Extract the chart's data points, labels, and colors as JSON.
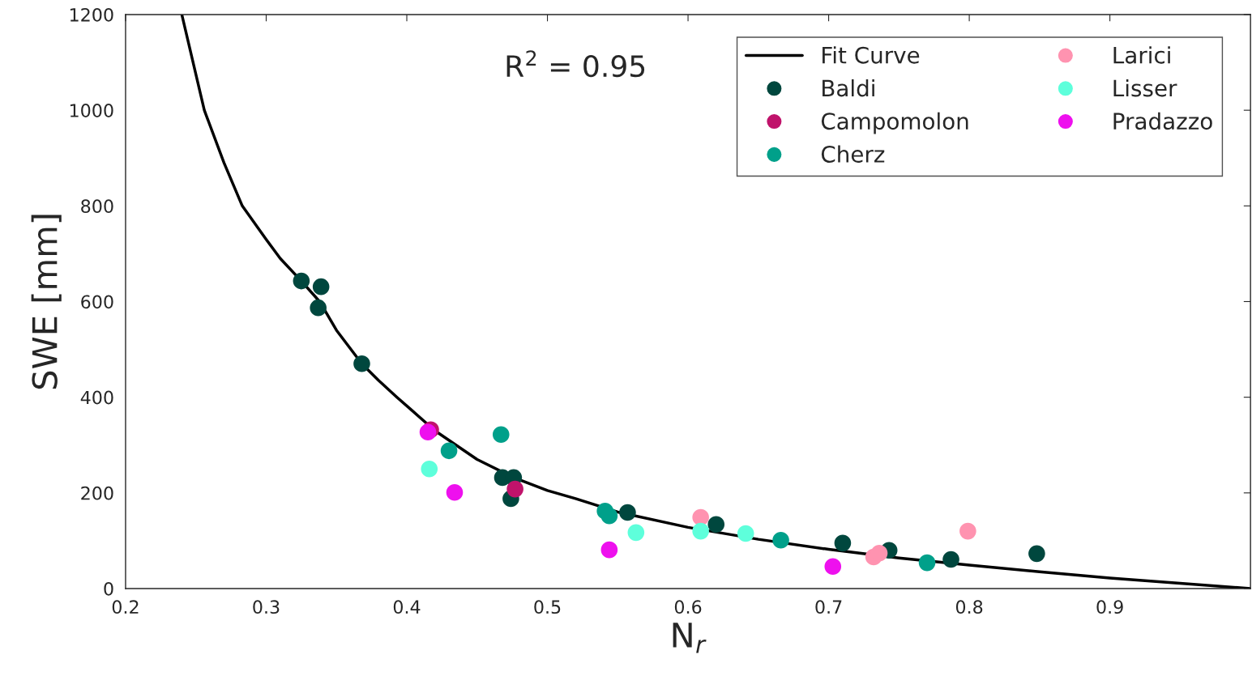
{
  "chart_data": {
    "type": "scatter",
    "xlabel": "N$_{r}$",
    "ylabel": "SWE [mm]",
    "annotations": [
      "R$^{2}$ = 0.95"
    ],
    "xlim": [
      0.2,
      1.0
    ],
    "xticks": [
      0.2,
      0.3,
      0.4,
      0.5,
      0.6,
      0.7,
      0.8,
      0.9
    ],
    "ylim": [
      0,
      1200
    ],
    "yticks": [
      0,
      200,
      400,
      600,
      800,
      1000,
      1200
    ],
    "grid": false,
    "legend": "top right",
    "marker": "circle",
    "series": [
      {
        "name": "Fit Curve",
        "type": "line",
        "marker": "none",
        "color": "#000000",
        "line_style": "solid",
        "x": [
          0.24,
          0.256,
          0.27,
          0.283,
          0.3,
          0.31,
          0.325,
          0.338,
          0.35,
          0.368,
          0.38,
          0.393,
          0.42,
          0.45,
          0.476,
          0.5,
          0.52,
          0.55,
          0.6,
          0.65,
          0.7,
          0.75,
          0.8,
          0.85,
          0.9,
          0.95,
          1.0
        ],
        "values": [
          1200,
          1000,
          890,
          800,
          730,
          690,
          643,
          600,
          540,
          470,
          435,
          400,
          330,
          270,
          232,
          205,
          188,
          160,
          128,
          103,
          82,
          64,
          49,
          35,
          22,
          11,
          0
        ]
      },
      {
        "name": "Baldi",
        "color": "#00473e",
        "x": [
          0.325,
          0.339,
          0.337,
          0.368,
          0.468,
          0.476,
          0.474,
          0.557,
          0.62,
          0.71,
          0.743,
          0.787,
          0.848
        ],
        "values": [
          643,
          631,
          587,
          470,
          232,
          232,
          188,
          159,
          134,
          95,
          80,
          61,
          73
        ]
      },
      {
        "name": "Campomolon",
        "color": "#c0136b",
        "x": [
          0.417,
          0.477
        ],
        "values": [
          332,
          208
        ]
      },
      {
        "name": "Cherz",
        "color": "#00a08a",
        "x": [
          0.467,
          0.43,
          0.541,
          0.544,
          0.666,
          0.77
        ],
        "values": [
          322,
          288,
          162,
          152,
          101,
          54
        ]
      },
      {
        "name": "Larici",
        "color": "#ff93b0",
        "x": [
          0.609,
          0.732,
          0.736,
          0.799
        ],
        "values": [
          149,
          66,
          74,
          120
        ]
      },
      {
        "name": "Lisser",
        "color": "#5effdb",
        "x": [
          0.416,
          0.563,
          0.609,
          0.641
        ],
        "values": [
          250,
          117,
          120,
          115
        ]
      },
      {
        "name": "Pradazzo",
        "color": "#ee10ee",
        "x": [
          0.415,
          0.434,
          0.544,
          0.703
        ],
        "values": [
          327,
          201,
          81,
          46
        ]
      }
    ]
  }
}
